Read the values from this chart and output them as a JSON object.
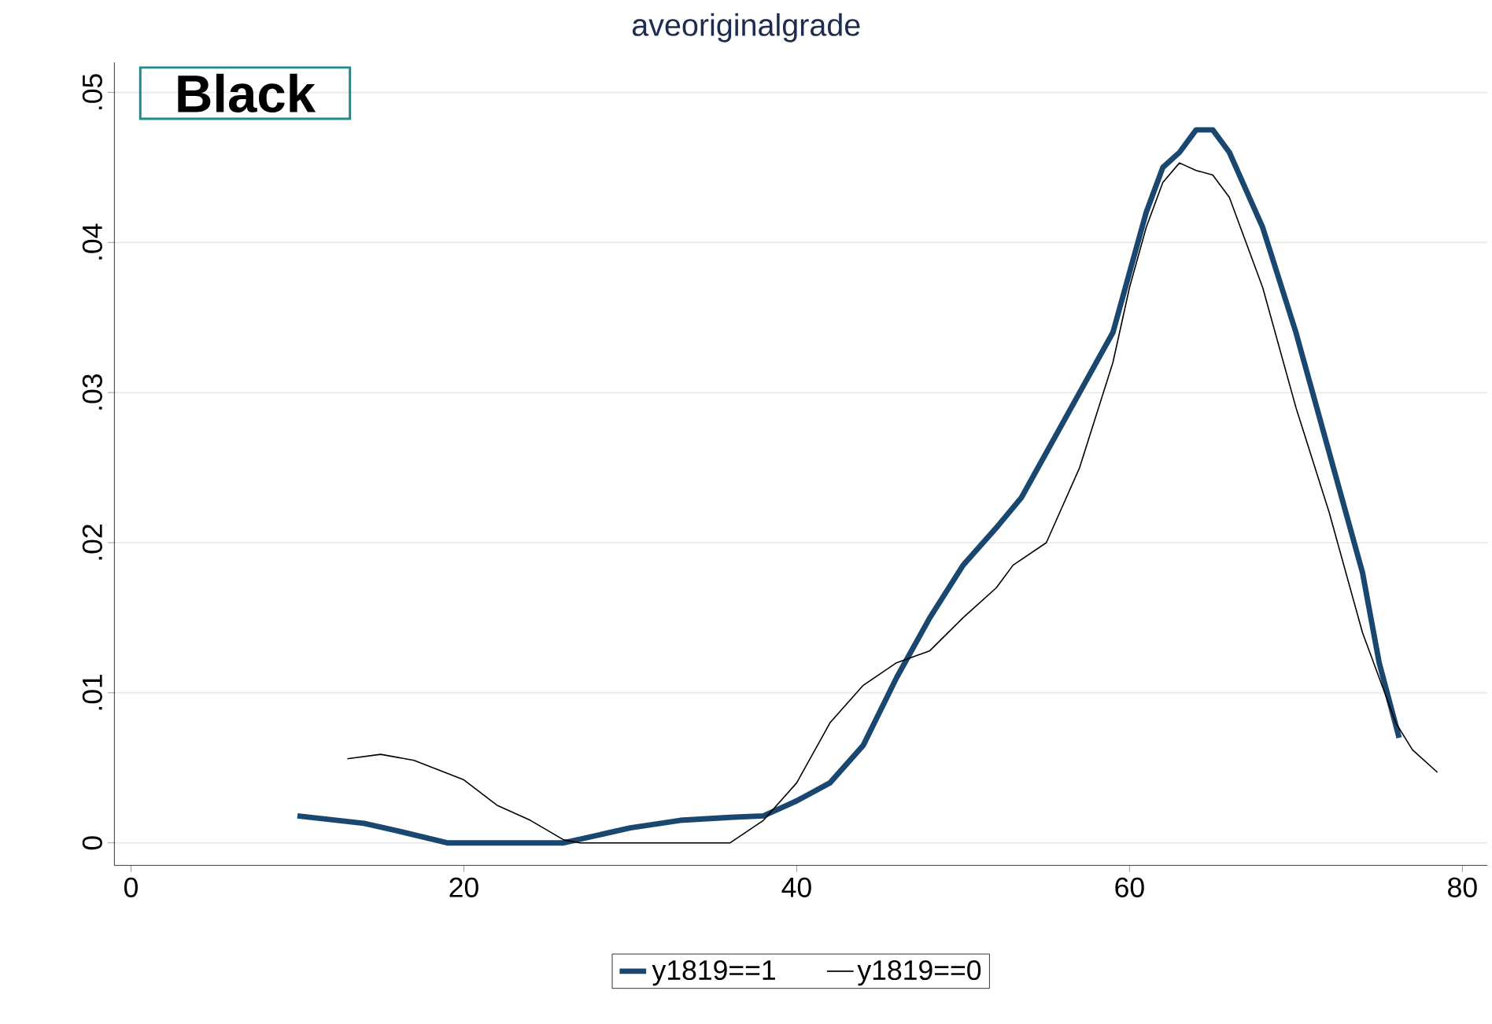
{
  "chart_data": {
    "type": "line",
    "title": "aveoriginalgrade",
    "annotations": [
      "Black"
    ],
    "series": [
      {
        "name": "y1819==1",
        "color": "#1a476f",
        "x": [
          10,
          14,
          16,
          19,
          26,
          28,
          30,
          33,
          36,
          38,
          40,
          42,
          44,
          46,
          48,
          50,
          52,
          53.5,
          55,
          57,
          59,
          60,
          61,
          62,
          63,
          64,
          65,
          66,
          68,
          70,
          72,
          74,
          75,
          76.2
        ],
        "values": [
          0.0018,
          0.0013,
          0.0008,
          0,
          0,
          0.0005,
          0.001,
          0.0015,
          0.0017,
          0.0018,
          0.0028,
          0.004,
          0.0065,
          0.011,
          0.015,
          0.0185,
          0.021,
          0.023,
          0.026,
          0.03,
          0.034,
          0.038,
          0.042,
          0.045,
          0.046,
          0.0475,
          0.0475,
          0.046,
          0.041,
          0.034,
          0.026,
          0.018,
          0.012,
          0.007
        ]
      },
      {
        "name": "y1819==0",
        "color": "#000000",
        "x": [
          13,
          15,
          17,
          20,
          22,
          24,
          26,
          27,
          36,
          38,
          40,
          42,
          44,
          46,
          48,
          50,
          52,
          53,
          55,
          57,
          59,
          60,
          61,
          62,
          63,
          64,
          65,
          66,
          68,
          70,
          72,
          74,
          76,
          77,
          78.5
        ],
        "values": [
          0.0056,
          0.0059,
          0.0055,
          0.0042,
          0.0025,
          0.0015,
          0.0002,
          0,
          0,
          0.0015,
          0.004,
          0.008,
          0.0105,
          0.012,
          0.0128,
          0.015,
          0.017,
          0.0185,
          0.02,
          0.025,
          0.032,
          0.037,
          0.041,
          0.044,
          0.0453,
          0.0448,
          0.0445,
          0.043,
          0.037,
          0.029,
          0.022,
          0.014,
          0.008,
          0.0062,
          0.0047
        ]
      }
    ],
    "xlim": [
      -1,
      81.5
    ],
    "ylim": [
      -0.0015,
      0.052
    ],
    "xticks": [
      0,
      20,
      40,
      60,
      80
    ],
    "yticks": [
      {
        "value": 0,
        "label": "0"
      },
      {
        "value": 0.01,
        "label": ".01"
      },
      {
        "value": 0.02,
        "label": ".02"
      },
      {
        "value": 0.03,
        "label": ".03"
      },
      {
        "value": 0.04,
        "label": ".04"
      },
      {
        "value": 0.05,
        "label": ".05"
      }
    ],
    "grid": "y",
    "legend": "bottom"
  }
}
